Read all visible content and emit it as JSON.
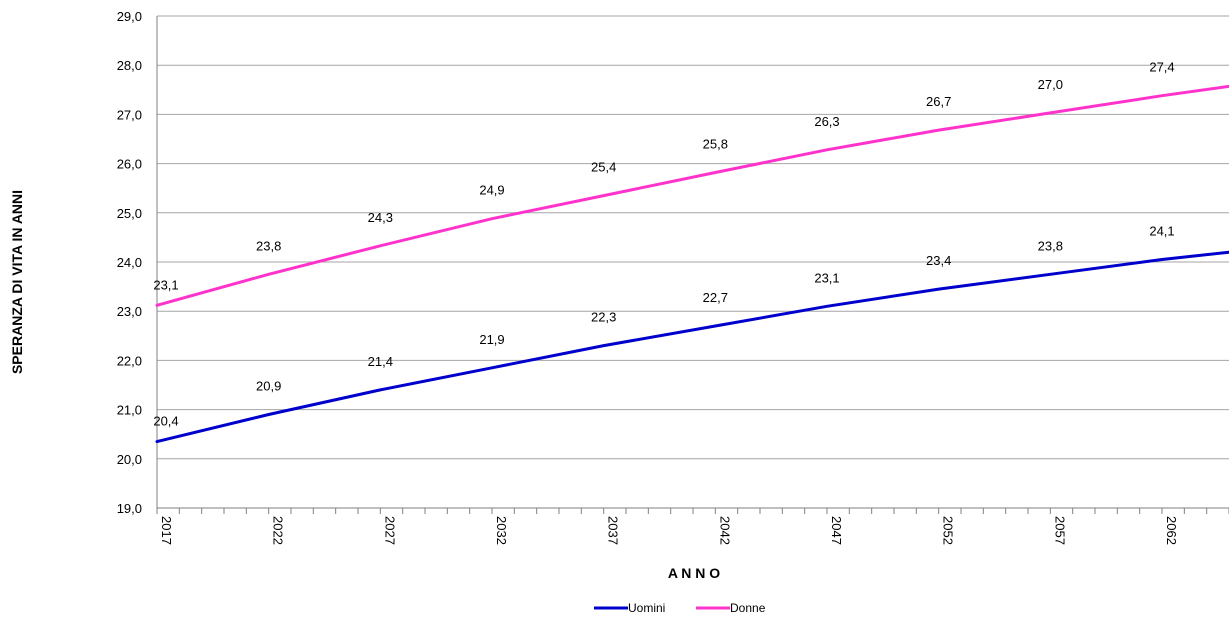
{
  "chart_data": {
    "type": "line",
    "title": "",
    "xlabel": "A N N O",
    "ylabel": "SPERANZA DI VITA IN ANNI",
    "ylim": [
      19.0,
      29.0
    ],
    "ytick_step": 1.0,
    "x_tick_labels": [
      "2017",
      "2022",
      "2027",
      "2032",
      "2037",
      "2042",
      "2047",
      "2052",
      "2057",
      "2062"
    ],
    "x_range": [
      2017,
      2065
    ],
    "grid": "horizontal",
    "legend_position": "bottom-center",
    "series": [
      {
        "name": "Uomini",
        "color": "#0000cc",
        "x": [
          2017,
          2022,
          2027,
          2032,
          2037,
          2042,
          2047,
          2052,
          2057,
          2062,
          2065
        ],
        "values": [
          20.35,
          20.9,
          21.4,
          21.85,
          22.3,
          22.7,
          23.1,
          23.45,
          23.75,
          24.05,
          24.2
        ],
        "labels": [
          "20,4",
          "20,9",
          "21,4",
          "21,9",
          "22,3",
          "22,7",
          "23,1",
          "23,4",
          "23,8",
          "24,1"
        ]
      },
      {
        "name": "Donne",
        "color": "#ff33cc",
        "x": [
          2017,
          2022,
          2027,
          2032,
          2037,
          2042,
          2047,
          2052,
          2057,
          2062,
          2065
        ],
        "values": [
          23.12,
          23.75,
          24.33,
          24.88,
          25.35,
          25.82,
          26.28,
          26.68,
          27.03,
          27.38,
          27.57
        ],
        "labels": [
          "23,1",
          "23,8",
          "24,3",
          "24,9",
          "25,4",
          "25,8",
          "26,3",
          "26,7",
          "27,0",
          "27,4"
        ]
      }
    ]
  }
}
